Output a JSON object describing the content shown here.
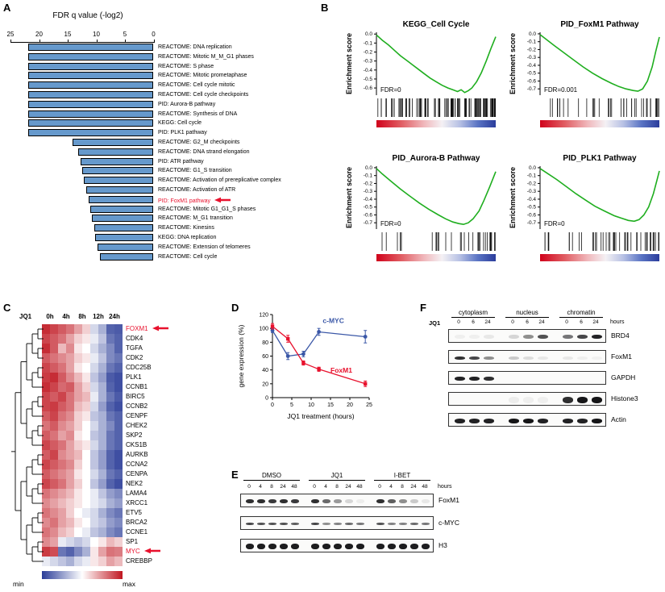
{
  "colors": {
    "accent_red": "#e8112d",
    "bar_blue": "#6699cc",
    "gsea_green": "#1fae1f",
    "heat_low": "#2a3c98",
    "heat_high": "#c01620",
    "cmyc_blue": "#3a57a7",
    "foxm1_red": "#e8112d"
  },
  "panelA": {
    "label": "A",
    "chart_data": {
      "type": "bar",
      "title": "FDR q value (-log2)",
      "xlim": [
        25,
        0
      ],
      "axis_ticks": [
        25,
        20,
        15,
        10,
        5,
        0
      ],
      "items": [
        {
          "label": "REACTOME: DNA replication",
          "value": 21.9
        },
        {
          "label": "REACTOME: Mitotic M_M_G1 phases",
          "value": 21.9
        },
        {
          "label": "REACTOME: S phase",
          "value": 21.9
        },
        {
          "label": "REACTOME: Mitotic prometaphase",
          "value": 21.9
        },
        {
          "label": "REACTOME: Cell cycle mitotic",
          "value": 21.9
        },
        {
          "label": "REACTOME: Cell cycle checkpoints",
          "value": 21.9
        },
        {
          "label": "PID: Aurora-B pathway",
          "value": 21.9
        },
        {
          "label": "REACTOME: Synthesis of DNA",
          "value": 21.9
        },
        {
          "label": "KEGG: Cell cycle",
          "value": 21.9
        },
        {
          "label": "PID: PLK1 pathway",
          "value": 21.9
        },
        {
          "label": "REACTOME: G2_M checkpoints",
          "value": 14.2
        },
        {
          "label": "REACTOME: DNA strand elongation",
          "value": 13.2
        },
        {
          "label": "PID: ATR pathway",
          "value": 12.8
        },
        {
          "label": "REACTOME: G1_S transition",
          "value": 12.4
        },
        {
          "label": "REACTOME: Activation of prereplicative complex",
          "value": 12.2
        },
        {
          "label": "REACTOME: Activation of ATR",
          "value": 11.8
        },
        {
          "label": "PID: FoxM1 pathway",
          "value": 11.4,
          "highlight": true
        },
        {
          "label": "REACTOME: Mitotic G1_G1_S phases",
          "value": 11.0
        },
        {
          "label": "REACTOME: M_G1 transition",
          "value": 10.8
        },
        {
          "label": "REACTOME: Kinesins",
          "value": 10.4
        },
        {
          "label": "KEGG: DNA replication",
          "value": 10.2
        },
        {
          "label": "REACTOME: Extension of telomeres",
          "value": 9.8
        },
        {
          "label": "REACTOME: Cell cycle",
          "value": 9.4
        }
      ]
    }
  },
  "panelB": {
    "label": "B",
    "ylabel": "Enrichment score",
    "plots": [
      {
        "title": "KEGG_Cell Cycle",
        "fdr_label": "FDR=0",
        "ymin": -0.6,
        "n_hits": 110,
        "curve": [
          [
            0,
            -0.01
          ],
          [
            0.05,
            -0.07
          ],
          [
            0.1,
            -0.12
          ],
          [
            0.15,
            -0.18
          ],
          [
            0.2,
            -0.24
          ],
          [
            0.25,
            -0.29
          ],
          [
            0.3,
            -0.34
          ],
          [
            0.35,
            -0.39
          ],
          [
            0.4,
            -0.44
          ],
          [
            0.45,
            -0.49
          ],
          [
            0.5,
            -0.53
          ],
          [
            0.55,
            -0.57
          ],
          [
            0.6,
            -0.6
          ],
          [
            0.64,
            -0.62
          ],
          [
            0.68,
            -0.64
          ],
          [
            0.71,
            -0.62
          ],
          [
            0.74,
            -0.65
          ],
          [
            0.77,
            -0.63
          ],
          [
            0.8,
            -0.6
          ],
          [
            0.84,
            -0.53
          ],
          [
            0.88,
            -0.43
          ],
          [
            0.92,
            -0.3
          ],
          [
            0.96,
            -0.16
          ],
          [
            1,
            -0.03
          ]
        ]
      },
      {
        "title": "PID_FoxM1 Pathway",
        "fdr_label": "FDR=0.001",
        "ymin": -0.7,
        "n_hits": 40,
        "curve": [
          [
            0,
            -0.01
          ],
          [
            0.06,
            -0.08
          ],
          [
            0.12,
            -0.15
          ],
          [
            0.2,
            -0.24
          ],
          [
            0.28,
            -0.33
          ],
          [
            0.36,
            -0.42
          ],
          [
            0.44,
            -0.5
          ],
          [
            0.52,
            -0.57
          ],
          [
            0.6,
            -0.63
          ],
          [
            0.66,
            -0.67
          ],
          [
            0.72,
            -0.7
          ],
          [
            0.78,
            -0.72
          ],
          [
            0.82,
            -0.73
          ],
          [
            0.86,
            -0.7
          ],
          [
            0.9,
            -0.6
          ],
          [
            0.94,
            -0.42
          ],
          [
            0.97,
            -0.22
          ],
          [
            1,
            -0.04
          ]
        ]
      },
      {
        "title": "PID_Aurora-B Pathway",
        "fdr_label": "FDR=0",
        "ymin": -0.7,
        "n_hits": 35,
        "curve": [
          [
            0,
            -0.01
          ],
          [
            0.05,
            -0.08
          ],
          [
            0.12,
            -0.17
          ],
          [
            0.2,
            -0.27
          ],
          [
            0.28,
            -0.36
          ],
          [
            0.36,
            -0.45
          ],
          [
            0.44,
            -0.53
          ],
          [
            0.52,
            -0.6
          ],
          [
            0.58,
            -0.65
          ],
          [
            0.64,
            -0.69
          ],
          [
            0.69,
            -0.71
          ],
          [
            0.73,
            -0.72
          ],
          [
            0.77,
            -0.7
          ],
          [
            0.81,
            -0.65
          ],
          [
            0.86,
            -0.55
          ],
          [
            0.9,
            -0.42
          ],
          [
            0.95,
            -0.24
          ],
          [
            1,
            -0.05
          ]
        ]
      },
      {
        "title": "PID_PLK1 Pathway",
        "fdr_label": "FDR=0",
        "ymin": -0.7,
        "n_hits": 45,
        "curve": [
          [
            0,
            -0.01
          ],
          [
            0.06,
            -0.07
          ],
          [
            0.14,
            -0.15
          ],
          [
            0.22,
            -0.24
          ],
          [
            0.3,
            -0.33
          ],
          [
            0.38,
            -0.41
          ],
          [
            0.46,
            -0.49
          ],
          [
            0.54,
            -0.55
          ],
          [
            0.62,
            -0.61
          ],
          [
            0.68,
            -0.64
          ],
          [
            0.74,
            -0.67
          ],
          [
            0.79,
            -0.68
          ],
          [
            0.83,
            -0.66
          ],
          [
            0.87,
            -0.6
          ],
          [
            0.91,
            -0.5
          ],
          [
            0.95,
            -0.33
          ],
          [
            0.98,
            -0.16
          ],
          [
            1,
            -0.04
          ]
        ]
      }
    ]
  },
  "panelC": {
    "label": "C",
    "treatment_label": "JQ1",
    "time_labels": [
      "0h",
      "4h",
      "8h",
      "12h",
      "24h"
    ],
    "scale_min_label": "min",
    "scale_max_label": "max",
    "chart_data": {
      "type": "heatmap",
      "columns_per_time": 2,
      "genes": [
        {
          "name": "FOXM1",
          "highlight": true,
          "values": [
            0.95,
            0.9,
            0.85,
            0.8,
            0.7,
            0.6,
            0.4,
            0.3,
            0.1,
            0.08
          ]
        },
        {
          "name": "CDK4",
          "values": [
            0.9,
            0.85,
            0.8,
            0.7,
            0.6,
            0.55,
            0.45,
            0.35,
            0.15,
            0.1
          ]
        },
        {
          "name": "TGFA",
          "values": [
            0.95,
            0.85,
            0.65,
            0.75,
            0.55,
            0.5,
            0.4,
            0.3,
            0.2,
            0.1
          ]
        },
        {
          "name": "CDK2",
          "values": [
            0.85,
            0.8,
            0.75,
            0.7,
            0.6,
            0.55,
            0.45,
            0.35,
            0.2,
            0.15
          ]
        },
        {
          "name": "CDC25B",
          "values": [
            0.9,
            0.85,
            0.8,
            0.7,
            0.55,
            0.5,
            0.4,
            0.3,
            0.15,
            0.1
          ]
        },
        {
          "name": "PLK1",
          "values": [
            0.92,
            0.95,
            0.85,
            0.75,
            0.65,
            0.55,
            0.35,
            0.25,
            0.08,
            0.05
          ]
        },
        {
          "name": "CCNB1",
          "values": [
            0.95,
            0.9,
            0.82,
            0.85,
            0.7,
            0.6,
            0.4,
            0.3,
            0.1,
            0.05
          ]
        },
        {
          "name": "BIRC5",
          "values": [
            0.9,
            0.85,
            0.9,
            0.8,
            0.7,
            0.65,
            0.45,
            0.3,
            0.15,
            0.08
          ]
        },
        {
          "name": "CCNB2",
          "values": [
            0.9,
            0.92,
            0.85,
            0.8,
            0.65,
            0.6,
            0.4,
            0.25,
            0.1,
            0.05
          ]
        },
        {
          "name": "CENPF",
          "values": [
            0.85,
            0.9,
            0.8,
            0.75,
            0.6,
            0.55,
            0.35,
            0.3,
            0.15,
            0.1
          ]
        },
        {
          "name": "CHEK2",
          "values": [
            0.8,
            0.85,
            0.75,
            0.7,
            0.6,
            0.5,
            0.4,
            0.3,
            0.2,
            0.1
          ]
        },
        {
          "name": "SKP2",
          "values": [
            0.85,
            0.8,
            0.7,
            0.75,
            0.55,
            0.5,
            0.35,
            0.3,
            0.15,
            0.1
          ]
        },
        {
          "name": "CKS1B",
          "values": [
            0.9,
            0.85,
            0.8,
            0.7,
            0.6,
            0.55,
            0.4,
            0.3,
            0.15,
            0.1
          ]
        },
        {
          "name": "AURKB",
          "values": [
            0.85,
            0.9,
            0.75,
            0.7,
            0.65,
            0.5,
            0.35,
            0.25,
            0.1,
            0.05
          ]
        },
        {
          "name": "CCNA2",
          "values": [
            0.9,
            0.85,
            0.8,
            0.75,
            0.6,
            0.5,
            0.35,
            0.25,
            0.1,
            0.05
          ]
        },
        {
          "name": "CENPA",
          "values": [
            0.85,
            0.8,
            0.75,
            0.7,
            0.55,
            0.5,
            0.4,
            0.3,
            0.15,
            0.1
          ]
        },
        {
          "name": "NEK2",
          "values": [
            0.9,
            0.85,
            0.8,
            0.7,
            0.6,
            0.5,
            0.35,
            0.25,
            0.1,
            0.05
          ]
        },
        {
          "name": "LAMA4",
          "values": [
            0.8,
            0.75,
            0.7,
            0.65,
            0.55,
            0.5,
            0.45,
            0.35,
            0.25,
            0.2
          ]
        },
        {
          "name": "XRCC1",
          "values": [
            0.75,
            0.7,
            0.65,
            0.6,
            0.55,
            0.5,
            0.45,
            0.4,
            0.3,
            0.25
          ]
        },
        {
          "name": "ETV5",
          "values": [
            0.8,
            0.75,
            0.7,
            0.6,
            0.5,
            0.45,
            0.4,
            0.3,
            0.2,
            0.15
          ]
        },
        {
          "name": "BRCA2",
          "values": [
            0.75,
            0.8,
            0.7,
            0.65,
            0.55,
            0.5,
            0.4,
            0.35,
            0.25,
            0.2
          ]
        },
        {
          "name": "CCNE1",
          "values": [
            0.8,
            0.75,
            0.65,
            0.6,
            0.5,
            0.45,
            0.35,
            0.3,
            0.2,
            0.15
          ]
        },
        {
          "name": "SP1",
          "values": [
            0.75,
            0.7,
            0.45,
            0.4,
            0.35,
            0.4,
            0.5,
            0.55,
            0.65,
            0.6
          ]
        },
        {
          "name": "MYC",
          "highlight": true,
          "values": [
            0.92,
            0.88,
            0.15,
            0.1,
            0.2,
            0.3,
            0.55,
            0.7,
            0.8,
            0.78
          ]
        },
        {
          "name": "CREBBP",
          "values": [
            0.45,
            0.4,
            0.35,
            0.3,
            0.4,
            0.45,
            0.55,
            0.6,
            0.7,
            0.65
          ]
        }
      ]
    }
  },
  "panelD": {
    "label": "D",
    "chart_data": {
      "type": "line",
      "xlabel": "JQ1 treatment (hours)",
      "ylabel": "gene expression (%)",
      "xticks": [
        0,
        5,
        10,
        15,
        20,
        25
      ],
      "yticks": [
        0,
        20,
        40,
        60,
        80,
        100,
        120
      ],
      "xlim": [
        0,
        25
      ],
      "ylim": [
        0,
        120
      ],
      "x": [
        0,
        4,
        8,
        12,
        24
      ],
      "series": [
        {
          "name": "c-MYC",
          "color": "#3a57a7",
          "marker": "circle",
          "values": [
            97,
            60,
            63,
            95,
            88
          ],
          "errors": [
            3,
            5,
            4,
            5,
            9
          ]
        },
        {
          "name": "FoxM1",
          "color": "#e8112d",
          "marker": "square",
          "values": [
            103,
            85,
            50,
            41,
            20
          ],
          "errors": [
            4,
            5,
            3,
            3,
            4
          ]
        }
      ]
    }
  },
  "panelE": {
    "label": "E",
    "groups": [
      "DMSO",
      "JQ1",
      "I-BET"
    ],
    "lane_labels": [
      "0",
      "4",
      "8",
      "24",
      "48"
    ],
    "hours_label": "hours",
    "blots": [
      {
        "name": "FoxM1",
        "band_height": 5,
        "bands": [
          [
            0.85,
            0.85,
            0.8,
            0.85,
            0.8
          ],
          [
            0.85,
            0.6,
            0.4,
            0.15,
            0.06
          ],
          [
            0.85,
            0.65,
            0.45,
            0.2,
            0.08
          ]
        ]
      },
      {
        "name": "c-MYC",
        "band_height": 3,
        "bands": [
          [
            0.75,
            0.7,
            0.7,
            0.7,
            0.65
          ],
          [
            0.75,
            0.45,
            0.5,
            0.6,
            0.55
          ],
          [
            0.7,
            0.5,
            0.5,
            0.6,
            0.55
          ]
        ]
      },
      {
        "name": "H3",
        "band_height": 7,
        "bands": [
          [
            0.92,
            0.92,
            0.92,
            0.92,
            0.92
          ],
          [
            0.92,
            0.92,
            0.92,
            0.92,
            0.92
          ],
          [
            0.92,
            0.92,
            0.92,
            0.92,
            0.92
          ]
        ]
      }
    ]
  },
  "panelF": {
    "label": "F",
    "treatment_label": "JQ1",
    "groups": [
      "cytoplasm",
      "nucleus",
      "chromatin"
    ],
    "lane_labels": [
      "0",
      "6",
      "24"
    ],
    "hours_label": "hours",
    "blots": [
      {
        "name": "BRD4",
        "band_height": 5,
        "bands": [
          [
            0.05,
            0.05,
            0.08
          ],
          [
            0.15,
            0.45,
            0.7
          ],
          [
            0.55,
            0.75,
            0.9
          ]
        ]
      },
      {
        "name": "FoxM1",
        "band_height": 4,
        "bands": [
          [
            0.85,
            0.75,
            0.45
          ],
          [
            0.2,
            0.12,
            0.08
          ],
          [
            0.08,
            0.05,
            0.04
          ]
        ]
      },
      {
        "name": "GAPDH",
        "band_height": 5,
        "bands": [
          [
            0.9,
            0.9,
            0.85
          ],
          [
            0.02,
            0.02,
            0.02
          ],
          [
            0.02,
            0.02,
            0.02
          ]
        ]
      },
      {
        "name": "Histone3",
        "band_height": 8,
        "bands": [
          [
            0.02,
            0.02,
            0.02
          ],
          [
            0.06,
            0.05,
            0.05
          ],
          [
            0.85,
            0.95,
            0.95
          ]
        ]
      },
      {
        "name": "Actin",
        "band_height": 6,
        "bands": [
          [
            0.9,
            0.9,
            0.9
          ],
          [
            0.95,
            0.95,
            0.9
          ],
          [
            0.9,
            0.9,
            0.95
          ]
        ]
      }
    ]
  }
}
